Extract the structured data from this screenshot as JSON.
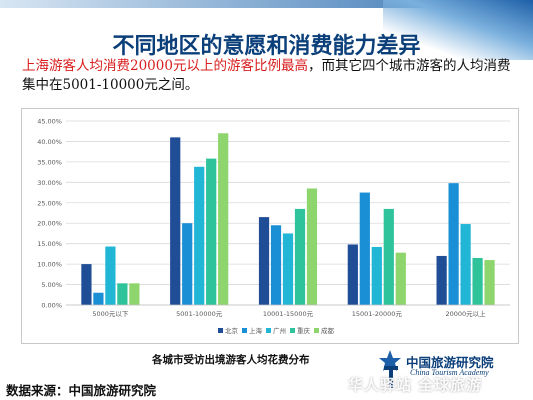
{
  "slide": {
    "title": "不同地区的意愿和消费能力差异",
    "subtitle_highlight": "上海游客人均消费20000元以上的游客比例最高",
    "subtitle_rest": "，而其它四个城市游客的人均消费集中在5001-10000元之间。",
    "caption": "各城市受访出境游客人均花费分布",
    "source": "数据来源：中国旅游研究院",
    "logo_cn": "中国旅游研究院",
    "logo_en": "China Tourism Academy",
    "watermark": "华人驿站 全球旅游"
  },
  "chart_data": {
    "type": "bar",
    "categories": [
      "5000元以下",
      "5001-10000元",
      "10001-15000元",
      "15001-20000元",
      "20000元以上"
    ],
    "series": [
      {
        "name": "北京",
        "color": "#1f4e96",
        "values": [
          10.0,
          41.0,
          21.5,
          14.8,
          12.0
        ]
      },
      {
        "name": "上海",
        "color": "#1a8fd6",
        "values": [
          3.0,
          20.0,
          19.5,
          27.5,
          29.8
        ]
      },
      {
        "name": "广州",
        "color": "#22b6d6",
        "values": [
          14.3,
          33.8,
          17.5,
          14.2,
          19.8
        ]
      },
      {
        "name": "重庆",
        "color": "#2ec39a",
        "values": [
          5.3,
          35.8,
          23.5,
          23.5,
          11.5
        ]
      },
      {
        "name": "成都",
        "color": "#8fd56e",
        "values": [
          5.3,
          42.0,
          28.5,
          12.8,
          11.0
        ]
      }
    ],
    "ylim": [
      0,
      45
    ],
    "yticks": [
      "0.00%",
      "5.00%",
      "10.00%",
      "15.00%",
      "20.00%",
      "25.00%",
      "30.00%",
      "35.00%",
      "40.00%",
      "45.00%"
    ],
    "grid": true,
    "legend_position": "bottom"
  }
}
